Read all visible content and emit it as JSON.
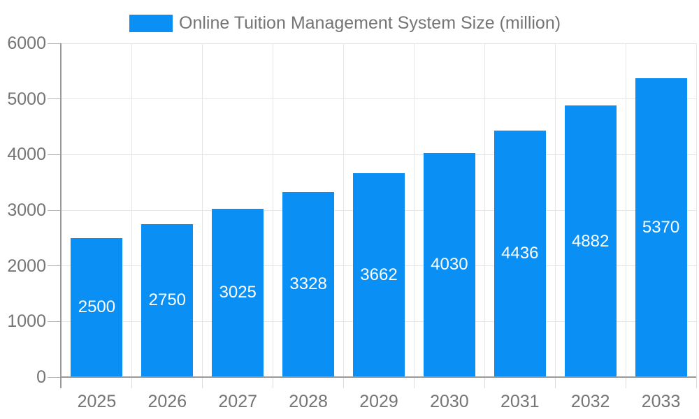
{
  "legend": {
    "series_label": "Online Tuition Management System Size (million)"
  },
  "colors": {
    "bar_fill": "#0a8ff5",
    "grid_line": "#e6e6e6",
    "axis_line": "#9a9a9a",
    "tick_text": "#757575",
    "bar_label_text": "#ffffff"
  },
  "chart_data": {
    "type": "bar",
    "title": "Online Tuition Management System Size (million)",
    "categories": [
      "2025",
      "2026",
      "2027",
      "2028",
      "2029",
      "2030",
      "2031",
      "2032",
      "2033"
    ],
    "series": [
      {
        "name": "Online Tuition Management System Size (million)",
        "values": [
          2500,
          2750,
          3025,
          3328,
          3662,
          4030,
          4436,
          4882,
          5370
        ]
      }
    ],
    "xlabel": "",
    "ylabel": "",
    "ylim": [
      0,
      6000
    ],
    "y_ticks": [
      0,
      1000,
      2000,
      3000,
      4000,
      5000,
      6000
    ],
    "grid": true,
    "legend_position": "top",
    "data_labels": "inside vertical-center white"
  }
}
